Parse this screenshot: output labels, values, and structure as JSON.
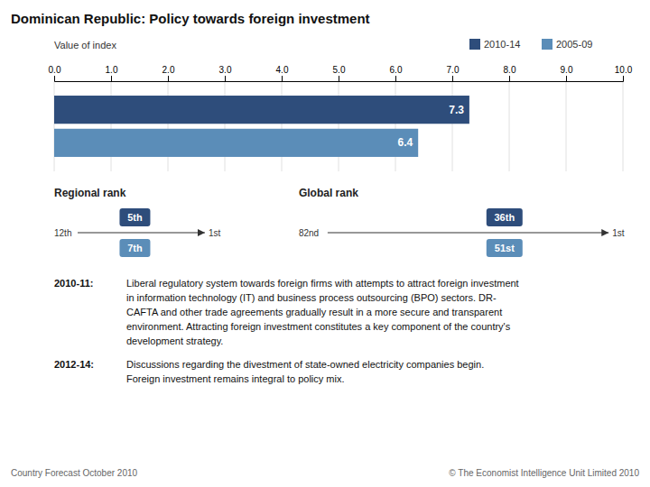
{
  "chart_data": {
    "type": "bar",
    "orientation": "horizontal",
    "title": "Dominican Republic: Policy towards foreign investment",
    "xlabel": "Value of index",
    "categories": [
      null
    ],
    "series": [
      {
        "name": "2010-14",
        "color": "#2e4d7b",
        "values": [
          7.3
        ]
      },
      {
        "name": "2005-09",
        "color": "#5b8db8",
        "values": [
          6.4
        ]
      }
    ],
    "xlim": [
      0,
      10
    ],
    "xticks": [
      {
        "value": 0,
        "label": "0.0"
      },
      {
        "value": 1,
        "label": "1.0"
      },
      {
        "value": 2,
        "label": "2.0"
      },
      {
        "value": 3,
        "label": "3.0"
      },
      {
        "value": 4,
        "label": "4.0"
      },
      {
        "value": 5,
        "label": "5.0"
      },
      {
        "value": 6,
        "label": "6.0"
      },
      {
        "value": 7,
        "label": "7.0"
      },
      {
        "value": 8,
        "label": "8.0"
      },
      {
        "value": 9,
        "label": "9.0"
      },
      {
        "value": 10,
        "label": "10.0"
      }
    ],
    "grid": true,
    "data_labels": true,
    "tick_labels": "x",
    "annotations": [
      "Regional rank",
      "12th",
      "1st",
      "5th",
      "7th",
      "Global rank",
      "82nd",
      "1st",
      "36th",
      "51st",
      "2010-11:",
      "Liberal regulatory system towards foreign firms with attempts to attract foreign investment",
      "in information technology (IT) and business process outsourcing (BPO) sectors. DR-",
      "CAFTA and other trade agreements gradually result in a more secure and transparent",
      "environment. Attracting foreign investment constitutes a key component of the country's",
      "development strategy.",
      "2012-14:",
      "Discussions regarding the divestment of state-owned electricity companies begin.",
      "Foreign investment remains integral to policy mix.",
      "Country Forecast October 2010",
      "© The Economist Intelligence Unit Limited 2010"
    ]
  }
}
